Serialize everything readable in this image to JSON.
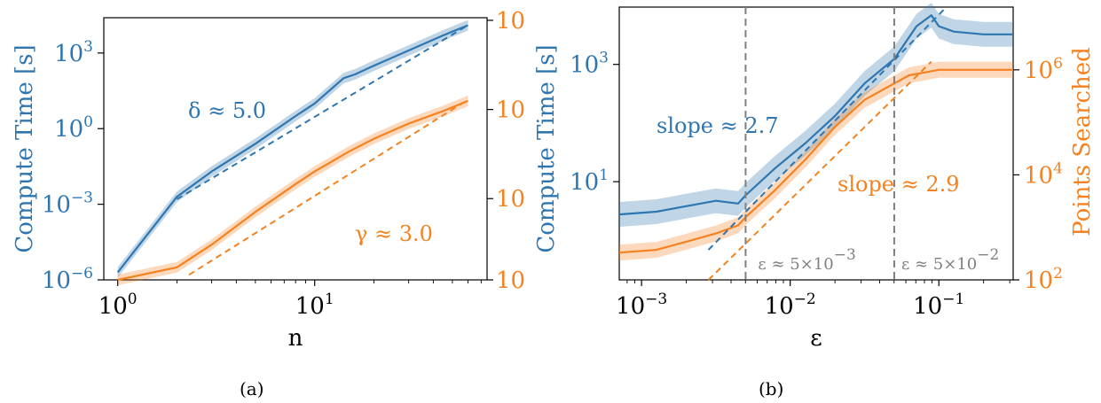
{
  "colors": {
    "blue": "#2f76b0",
    "orange": "#f58220",
    "gray": "#808080",
    "axis": "#000000"
  },
  "chart_data": [
    {
      "panel": "a",
      "caption": "(a)",
      "type": "line",
      "xlabel": "n",
      "ylabel": "Compute Time [s]",
      "ylabel_right": "",
      "xscale": "log",
      "yscale": "log",
      "xlim": [
        0.85,
        75
      ],
      "ylim_log10": [
        -6,
        4.4
      ],
      "x_ticks": [
        {
          "v": 1,
          "base": "10",
          "exp": "0"
        },
        {
          "v": 10,
          "base": "10",
          "exp": "1"
        }
      ],
      "y_ticks": [
        {
          "v": -6,
          "base": "10",
          "exp": "−6"
        },
        {
          "v": -3,
          "base": "10",
          "exp": "−3"
        },
        {
          "v": 0,
          "base": "10",
          "exp": "0"
        },
        {
          "v": 3,
          "base": "10",
          "exp": "3"
        }
      ],
      "y_right_ticks": [
        {
          "frac": 0.0,
          "text": "10"
        },
        {
          "frac": 0.31,
          "text": "10"
        },
        {
          "frac": 0.65,
          "text": "10"
        },
        {
          "frac": 0.99,
          "text": "10"
        }
      ],
      "series": [
        {
          "color": "blue",
          "x": [
            1,
            2,
            3,
            5,
            8,
            10,
            14,
            16,
            20,
            30,
            45,
            60
          ],
          "y_log10": [
            -5.7,
            -2.7,
            -1.7,
            -0.6,
            0.5,
            1.0,
            2.0,
            2.15,
            2.5,
            3.1,
            3.7,
            4.1
          ]
        },
        {
          "color": "orange",
          "x": [
            1,
            2,
            3,
            5,
            8,
            10,
            15,
            20,
            30,
            45,
            60
          ],
          "y_log10": [
            -6.0,
            -5.5,
            -4.6,
            -3.3,
            -2.2,
            -1.7,
            -0.9,
            -0.4,
            0.2,
            0.7,
            1.1
          ]
        }
      ],
      "fits": [
        {
          "color": "blue",
          "x": [
            2,
            60
          ],
          "y_log10": [
            -2.8,
            4.1
          ]
        },
        {
          "color": "orange",
          "x": [
            2.3,
            60
          ],
          "y_log10": [
            -5.8,
            1.15
          ]
        }
      ],
      "annotations": [
        {
          "text": "δ ≈ 5.0",
          "color": "blue"
        },
        {
          "text": "γ ≈ 3.0",
          "color": "orange"
        }
      ]
    },
    {
      "panel": "b",
      "caption": "(b)",
      "type": "line",
      "xlabel": "ε",
      "ylabel": "Compute Time [s]",
      "ylabel_right": "Points Searched",
      "xscale": "log",
      "yscale": "log",
      "xlim_log10": [
        -3.15,
        -0.5
      ],
      "x_ticks": [
        {
          "v": -3,
          "base": "10",
          "exp": "−3"
        },
        {
          "v": -2,
          "base": "10",
          "exp": "−2"
        },
        {
          "v": -1,
          "base": "10",
          "exp": "−1"
        }
      ],
      "y_ticks": [
        {
          "frac": 0.36,
          "base": "10",
          "exp": "1"
        },
        {
          "frac": 0.79,
          "base": "10",
          "exp": "3"
        }
      ],
      "y_right_ticks": [
        {
          "frac": 0.0,
          "base": "10",
          "exp": "2"
        },
        {
          "frac": 0.385,
          "base": "10",
          "exp": "4"
        },
        {
          "frac": 0.77,
          "base": "10",
          "exp": "6"
        }
      ],
      "series": [
        {
          "color": "blue",
          "axis": "left",
          "x_log10": [
            -3.15,
            -2.9,
            -2.7,
            -2.5,
            -2.35,
            -2.3,
            -2.1,
            -1.9,
            -1.7,
            -1.5,
            -1.3,
            -1.15,
            -1.1,
            -1.05,
            -1.0,
            -0.9,
            -0.7,
            -0.5
          ],
          "frac": [
            0.24,
            0.25,
            0.27,
            0.29,
            0.28,
            0.31,
            0.41,
            0.5,
            0.6,
            0.72,
            0.81,
            0.93,
            0.95,
            0.97,
            0.93,
            0.91,
            0.9,
            0.9
          ]
        },
        {
          "color": "orange",
          "axis": "right",
          "x_log10": [
            -3.15,
            -2.9,
            -2.7,
            -2.5,
            -2.35,
            -2.3,
            -2.1,
            -1.9,
            -1.7,
            -1.5,
            -1.3,
            -1.2,
            -1.1,
            -1.0,
            -0.9,
            -0.7,
            -0.5
          ],
          "frac": [
            0.1,
            0.11,
            0.14,
            0.17,
            0.2,
            0.23,
            0.33,
            0.44,
            0.56,
            0.66,
            0.72,
            0.75,
            0.76,
            0.77,
            0.77,
            0.77,
            0.77
          ]
        }
      ],
      "fits": [
        {
          "color": "blue",
          "x_log10": [
            -2.55,
            -0.95
          ],
          "frac": [
            0.11,
            1.0
          ]
        },
        {
          "color": "orange",
          "x_log10": [
            -2.55,
            -1.05
          ],
          "frac": [
            0.0,
            0.8
          ]
        }
      ],
      "vlines": [
        {
          "x_log10": -2.3
        },
        {
          "x_log10": -1.3
        }
      ],
      "annotations": [
        {
          "text": "slope ≈ 2.7",
          "color": "blue"
        },
        {
          "text": "slope ≈ 2.9",
          "color": "orange"
        },
        {
          "text": "ε ≈ 5×10",
          "exp": "−3",
          "color": "gray"
        },
        {
          "text": "ε ≈ 5×10",
          "exp": "−2",
          "color": "gray"
        }
      ]
    }
  ]
}
